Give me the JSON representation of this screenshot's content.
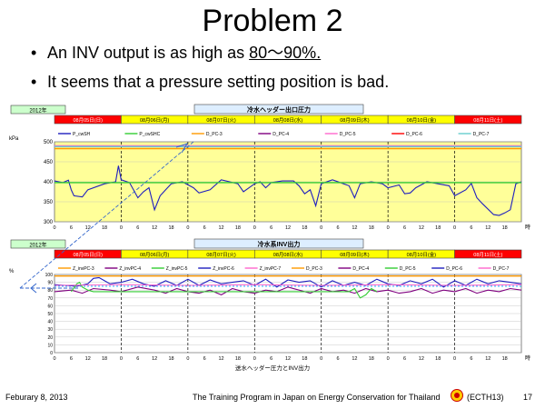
{
  "slide": {
    "title": "Problem 2",
    "bullets": [
      {
        "prefix": "An INV output is as high as ",
        "highlight": "80～90%."
      },
      {
        "prefix": "It seems that a pressure setting position is bad.",
        "highlight": ""
      }
    ],
    "footer": {
      "date": "Feburary 8, 2013",
      "program": "The Training Program in Japan on Energy Conservation for Thailand",
      "code": "(ECTH13)",
      "page": "17"
    },
    "caption": "送水ヘッダー圧力とINV出力"
  },
  "colors": {
    "plot_bg": "#ffff99",
    "weekday_cell": "#ffff00",
    "weekend_cell": "#ff0000",
    "title_box": "#ddeeff",
    "year_box": "#ccffcc",
    "line_main": "#1f1fbf",
    "line_green": "#33cc33",
    "line_purple": "#800080",
    "line_orange": "#ff9900",
    "line_pink": "#ff66cc",
    "line_red": "#ff0000",
    "line_cyan": "#66cccc",
    "line_ref": "#00a0ff",
    "annotation": "#3366cc"
  },
  "chart_data": [
    {
      "type": "line",
      "year_label": "2012年",
      "title": "冷水ヘッダー出口圧力",
      "ylabel": "kPa",
      "xlabel": "時",
      "ylim": [
        300,
        500
      ],
      "yticks": [
        300,
        350,
        400,
        450,
        500
      ],
      "day_labels": [
        "08月05日(日)",
        "08月06日(月)",
        "08月07日(火)",
        "08月08日(水)",
        "08月09日(木)",
        "08月10日(金)",
        "08月11日(土)"
      ],
      "weekend": [
        true,
        false,
        false,
        false,
        false,
        false,
        true
      ],
      "hour_ticks": [
        "0",
        "6",
        "12",
        "18"
      ],
      "legend": [
        "P_cwSH",
        "P_cwSHC",
        "D_PC-3",
        "D_PC-4",
        "D_PC-5",
        "D_PC-6",
        "D_PC-7"
      ],
      "legend_colors": [
        "#1f1fbf",
        "#33cc33",
        "#ff9900",
        "#800080",
        "#ff66cc",
        "#ff0000",
        "#66cccc"
      ],
      "series": [
        {
          "name": "P_cwSH",
          "x": [
            0,
            3,
            5,
            6,
            7,
            10,
            12,
            18,
            22,
            23,
            24,
            27,
            30,
            32,
            34,
            36,
            38,
            40,
            42,
            46,
            50,
            52,
            56,
            60,
            66,
            68,
            70,
            72,
            74,
            76,
            78,
            82,
            86,
            88,
            90,
            92,
            94,
            96,
            100,
            104,
            106,
            108,
            110,
            114,
            118,
            120,
            124,
            126,
            128,
            130,
            134,
            138,
            142,
            144,
            148,
            150,
            152,
            154,
            158,
            160,
            162,
            164,
            166,
            168
          ],
          "y": [
            402,
            398,
            404,
            380,
            365,
            362,
            380,
            395,
            400,
            440,
            405,
            398,
            360,
            375,
            385,
            330,
            365,
            380,
            395,
            400,
            385,
            372,
            380,
            405,
            395,
            375,
            385,
            395,
            400,
            385,
            398,
            402,
            402,
            390,
            370,
            380,
            340,
            395,
            405,
            395,
            390,
            360,
            395,
            400,
            395,
            385,
            392,
            370,
            372,
            385,
            400,
            395,
            390,
            365,
            380,
            396,
            360,
            345,
            318,
            316,
            322,
            330,
            395,
            400
          ]
        },
        {
          "name": "P_cwSHC",
          "x": [
            0,
            168
          ],
          "y": [
            398,
            398
          ]
        },
        {
          "name": "D_PC-3",
          "x": [
            0,
            168
          ],
          "y": [
            483,
            483
          ]
        },
        {
          "name": "D_PC-5",
          "x": [
            0,
            168
          ],
          "y": [
            490,
            490
          ]
        },
        {
          "name": "D_PC-7",
          "x": [
            0,
            168
          ],
          "y": [
            488,
            488
          ]
        }
      ]
    },
    {
      "type": "line",
      "year_label": "2012年",
      "title": "冷水系INV出力",
      "ylabel": "%",
      "xlabel": "時",
      "ylim": [
        0,
        100
      ],
      "yticks": [
        0,
        10,
        20,
        30,
        40,
        50,
        60,
        70,
        80,
        90,
        100
      ],
      "day_labels": [
        "08月05日(日)",
        "08月06日(月)",
        "08月07日(火)",
        "08月08日(水)",
        "08月09日(木)",
        "08月10日(金)",
        "08月11日(土)"
      ],
      "weekend": [
        true,
        false,
        false,
        false,
        false,
        false,
        true
      ],
      "hour_ticks": [
        "0",
        "6",
        "12",
        "18"
      ],
      "legend": [
        "Z_invPC-3",
        "Z_invPC-4",
        "Z_invPC-5",
        "Z_invPC-6",
        "Z_invPC-7",
        "D_PC-3",
        "D_PC-4",
        "D_PC-5",
        "D_PC-6",
        "D_PC-7"
      ],
      "legend_colors": [
        "#ff9900",
        "#800080",
        "#33cc33",
        "#1f1fbf",
        "#ff66cc",
        "#ff9900",
        "#800080",
        "#33cc33",
        "#1f1fbf",
        "#ff66cc"
      ],
      "series": [
        {
          "name": "Z_invPC-6",
          "x": [
            0,
            4,
            8,
            12,
            14,
            16,
            18,
            20,
            24,
            28,
            32,
            36,
            40,
            44,
            48,
            52,
            56,
            60,
            64,
            68,
            72,
            76,
            80,
            84,
            88,
            92,
            96,
            100,
            104,
            108,
            112,
            116,
            120,
            124,
            128,
            132,
            136,
            140,
            144,
            148,
            152,
            156,
            160,
            164,
            168
          ],
          "y": [
            87,
            86,
            85,
            88,
            95,
            96,
            92,
            88,
            90,
            94,
            88,
            85,
            92,
            86,
            94,
            86,
            93,
            88,
            90,
            92,
            86,
            94,
            84,
            93,
            90,
            92,
            84,
            92,
            86,
            90,
            86,
            94,
            88,
            86,
            92,
            88,
            94,
            84,
            92,
            86,
            94,
            88,
            92,
            90,
            88
          ]
        },
        {
          "name": "Z_invPC-4",
          "x": [
            0,
            6,
            10,
            14,
            20,
            24,
            30,
            36,
            40,
            44,
            48,
            52,
            56,
            60,
            64,
            68,
            72,
            76,
            80,
            84,
            88,
            92,
            96,
            100,
            104,
            108,
            112,
            116,
            120,
            124,
            128,
            132,
            136,
            140,
            144,
            148,
            152,
            156,
            160,
            164,
            168
          ],
          "y": [
            78,
            80,
            76,
            82,
            80,
            78,
            84,
            80,
            76,
            82,
            78,
            76,
            80,
            74,
            82,
            78,
            76,
            80,
            78,
            84,
            80,
            76,
            82,
            78,
            80,
            76,
            82,
            78,
            80,
            76,
            78,
            82,
            76,
            80,
            78,
            82,
            76,
            80,
            78,
            82,
            80
          ]
        },
        {
          "name": "Z_invPC-5",
          "x": [
            6,
            8,
            9,
            10,
            12,
            14,
            106,
            108,
            110,
            112,
            114,
            116
          ],
          "y": [
            78,
            88,
            90,
            84,
            80,
            78,
            78,
            82,
            70,
            74,
            82,
            78
          ]
        },
        {
          "name": "Z_invPC-7",
          "x": [
            0,
            24,
            48,
            72,
            96,
            120,
            144,
            168
          ],
          "y": [
            86,
            87,
            86,
            87,
            86,
            87,
            86,
            87
          ]
        },
        {
          "name": "Z_invPC-3",
          "x": [
            0,
            168
          ],
          "y": [
            98,
            98
          ]
        }
      ],
      "reference_line": {
        "y": 85
      }
    }
  ]
}
